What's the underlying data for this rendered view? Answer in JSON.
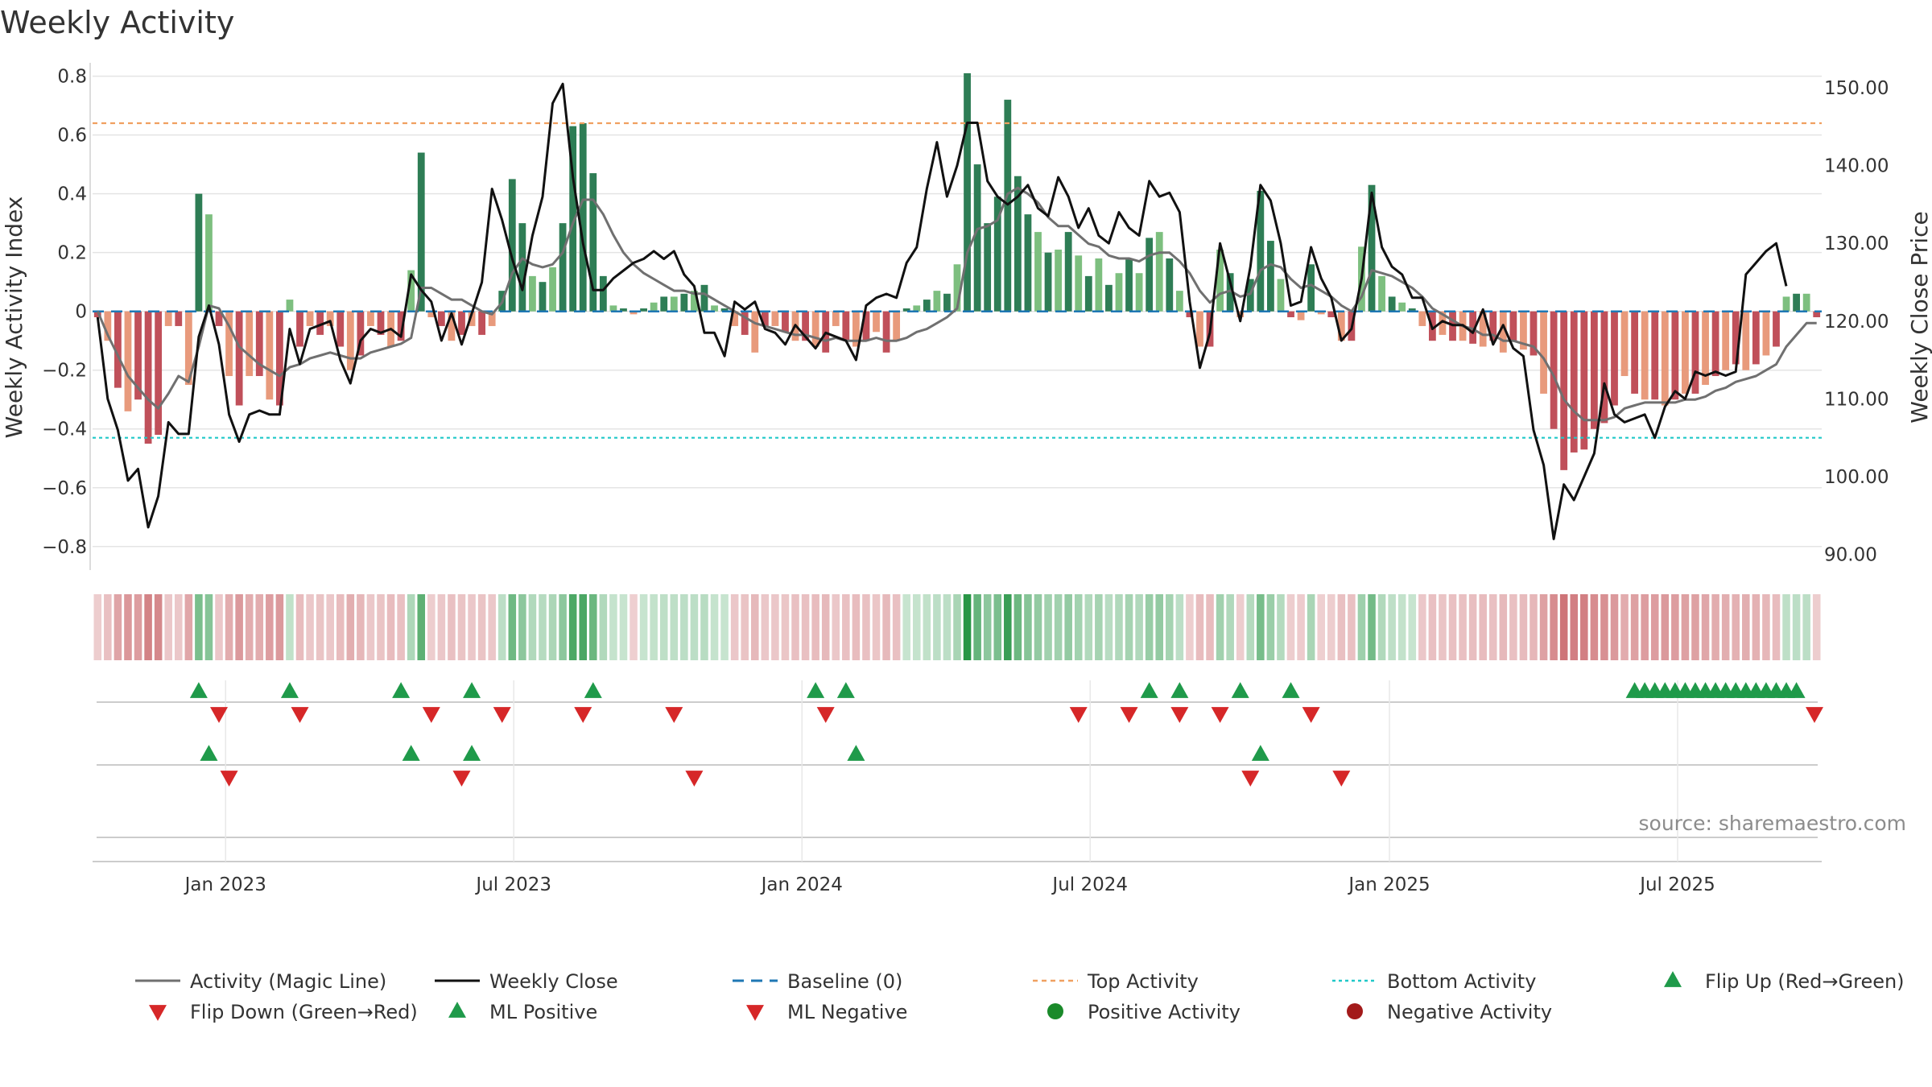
{
  "chart_data": {
    "type": "bar",
    "title": "Weekly Activity",
    "ylabel_left": "Weekly Activity Index",
    "ylabel_right": "Weekly Close Price",
    "ylim_left": [
      -0.88,
      0.84
    ],
    "ylim_right": [
      88.0,
      153.0
    ],
    "yticks_left": [
      0.8,
      0.6,
      0.4,
      0.2,
      0,
      -0.2,
      -0.4,
      -0.6,
      -0.8
    ],
    "ytick_labels_left": [
      "0.8",
      "0.6",
      "0.4",
      "0.2",
      "0",
      "−0.2",
      "−0.4",
      "−0.6",
      "−0.8"
    ],
    "yticks_right": [
      150,
      140,
      130,
      120,
      110,
      100,
      90
    ],
    "ytick_labels_right": [
      "150.00",
      "140.00",
      "130.00",
      "120.00",
      "110.00",
      "100.00",
      "90.00"
    ],
    "top_activity": 0.64,
    "bottom_activity": -0.43,
    "baseline": 0,
    "x_start": "2022-10-10",
    "x_end": "2025-10-06",
    "x_ticks": [
      {
        "date": "2023-01-02",
        "label": "Jan 2023"
      },
      {
        "date": "2023-07-03",
        "label": "Jul 2023"
      },
      {
        "date": "2024-01-01",
        "label": "Jan 2024"
      },
      {
        "date": "2024-07-01",
        "label": "Jul 2024"
      },
      {
        "date": "2025-01-06",
        "label": "Jan 2025"
      },
      {
        "date": "2025-07-07",
        "label": "Jul 2025"
      }
    ],
    "activity": [
      -0.02,
      -0.1,
      -0.26,
      -0.34,
      -0.3,
      -0.45,
      -0.42,
      -0.05,
      -0.05,
      -0.25,
      0.4,
      0.33,
      -0.05,
      -0.22,
      -0.32,
      -0.22,
      -0.22,
      -0.3,
      -0.32,
      0.04,
      -0.12,
      -0.05,
      -0.08,
      -0.05,
      -0.12,
      -0.2,
      -0.15,
      -0.05,
      -0.08,
      -0.12,
      -0.1,
      0.14,
      0.54,
      -0.02,
      -0.05,
      -0.1,
      -0.08,
      -0.05,
      -0.08,
      -0.05,
      0.07,
      0.45,
      0.3,
      0.12,
      0.1,
      0.15,
      0.3,
      0.63,
      0.64,
      0.47,
      0.12,
      0.02,
      0.01,
      -0.01,
      0.01,
      0.03,
      0.05,
      0.05,
      0.06,
      0.07,
      0.09,
      0.02,
      0.01,
      -0.05,
      -0.08,
      -0.14,
      -0.05,
      -0.05,
      -0.07,
      -0.1,
      -0.1,
      -0.12,
      -0.14,
      -0.05,
      -0.1,
      -0.12,
      -0.1,
      -0.07,
      -0.14,
      -0.1,
      0.01,
      0.02,
      0.04,
      0.07,
      0.06,
      0.16,
      0.81,
      0.5,
      0.3,
      0.39,
      0.72,
      0.46,
      0.33,
      0.27,
      0.2,
      0.21,
      0.27,
      0.19,
      0.12,
      0.18,
      0.09,
      0.13,
      0.18,
      0.13,
      0.25,
      0.27,
      0.18,
      0.07,
      -0.02,
      -0.12,
      -0.12,
      0.21,
      0.13,
      -0.02,
      0.11,
      0.41,
      0.24,
      0.11,
      -0.02,
      -0.03,
      0.16,
      -0.01,
      -0.02,
      -0.1,
      -0.1,
      0.22,
      0.43,
      0.12,
      0.05,
      0.03,
      0.01,
      -0.05,
      -0.1,
      -0.08,
      -0.1,
      -0.1,
      -0.11,
      -0.12,
      -0.1,
      -0.14,
      -0.1,
      -0.13,
      -0.15,
      -0.28,
      -0.4,
      -0.54,
      -0.48,
      -0.47,
      -0.4,
      -0.38,
      -0.32,
      -0.22,
      -0.28,
      -0.3,
      -0.3,
      -0.32,
      -0.3,
      -0.28,
      -0.28,
      -0.25,
      -0.22,
      -0.2,
      -0.18,
      -0.2,
      -0.18,
      -0.15,
      -0.12,
      0.05,
      0.06,
      0.06,
      -0.02
    ],
    "magic_line": [
      0.0,
      -0.08,
      -0.15,
      -0.22,
      -0.26,
      -0.3,
      -0.33,
      -0.28,
      -0.22,
      -0.24,
      -0.12,
      0.02,
      0.01,
      -0.05,
      -0.12,
      -0.15,
      -0.18,
      -0.2,
      -0.22,
      -0.19,
      -0.18,
      -0.16,
      -0.15,
      -0.14,
      -0.15,
      -0.16,
      -0.16,
      -0.14,
      -0.13,
      -0.12,
      -0.11,
      -0.09,
      0.08,
      0.08,
      0.06,
      0.04,
      0.04,
      0.02,
      0.0,
      -0.01,
      0.03,
      0.13,
      0.18,
      0.16,
      0.15,
      0.16,
      0.2,
      0.3,
      0.38,
      0.38,
      0.33,
      0.26,
      0.2,
      0.16,
      0.13,
      0.11,
      0.09,
      0.07,
      0.07,
      0.06,
      0.06,
      0.04,
      0.02,
      0.0,
      -0.02,
      -0.04,
      -0.05,
      -0.06,
      -0.07,
      -0.08,
      -0.08,
      -0.09,
      -0.1,
      -0.09,
      -0.1,
      -0.1,
      -0.1,
      -0.09,
      -0.1,
      -0.1,
      -0.09,
      -0.07,
      -0.06,
      -0.04,
      -0.02,
      0.01,
      0.2,
      0.28,
      0.29,
      0.31,
      0.4,
      0.42,
      0.4,
      0.37,
      0.32,
      0.29,
      0.29,
      0.26,
      0.23,
      0.22,
      0.19,
      0.18,
      0.18,
      0.17,
      0.19,
      0.2,
      0.2,
      0.17,
      0.13,
      0.07,
      0.03,
      0.06,
      0.07,
      0.05,
      0.06,
      0.14,
      0.16,
      0.15,
      0.11,
      0.08,
      0.09,
      0.07,
      0.05,
      0.02,
      0.0,
      0.05,
      0.14,
      0.13,
      0.12,
      0.1,
      0.08,
      0.05,
      0.01,
      -0.01,
      -0.03,
      -0.05,
      -0.06,
      -0.08,
      -0.08,
      -0.1,
      -0.1,
      -0.11,
      -0.12,
      -0.16,
      -0.22,
      -0.3,
      -0.34,
      -0.37,
      -0.37,
      -0.37,
      -0.36,
      -0.33,
      -0.32,
      -0.31,
      -0.31,
      -0.31,
      -0.31,
      -0.3,
      -0.3,
      -0.29,
      -0.27,
      -0.26,
      -0.24,
      -0.23,
      -0.22,
      -0.2,
      -0.18,
      -0.12,
      -0.08,
      -0.04,
      -0.04
    ],
    "weekly_close": [
      120.5,
      110.0,
      106.0,
      99.5,
      101.0,
      93.5,
      97.5,
      107.0,
      105.5,
      105.5,
      118.0,
      122.0,
      117.0,
      108.0,
      104.5,
      108.0,
      108.5,
      108.0,
      108.0,
      119.0,
      114.5,
      119.0,
      119.5,
      120.0,
      115.0,
      112.0,
      117.5,
      119.0,
      118.5,
      119.0,
      118.0,
      126.0,
      124.0,
      122.5,
      117.5,
      121.0,
      117.0,
      121.0,
      125.0,
      137.0,
      133.0,
      128.0,
      124.0,
      131.0,
      136.0,
      148.0,
      150.5,
      138.5,
      130.0,
      124.0,
      124.0,
      125.5,
      126.5,
      127.5,
      128.0,
      129.0,
      128.0,
      129.0,
      126.0,
      124.5,
      118.5,
      118.5,
      115.5,
      122.5,
      121.5,
      122.5,
      119.0,
      118.5,
      117.0,
      119.5,
      118.0,
      116.5,
      118.5,
      118.0,
      117.5,
      115.0,
      122.0,
      123.0,
      123.5,
      123.0,
      127.5,
      129.5,
      137.0,
      143.0,
      136.0,
      140.0,
      145.5,
      145.5,
      138.0,
      136.0,
      135.0,
      136.0,
      137.5,
      134.5,
      133.5,
      138.5,
      136.0,
      132.0,
      134.5,
      131.0,
      130.0,
      134.0,
      132.0,
      131.0,
      138.0,
      136.0,
      136.5,
      134.0,
      122.5,
      114.0,
      118.5,
      130.0,
      125.0,
      120.0,
      127.0,
      137.5,
      135.5,
      130.0,
      122.0,
      122.5,
      129.5,
      125.5,
      123.0,
      117.5,
      119.0,
      125.5,
      136.5,
      129.5,
      127.0,
      126.0,
      123.0,
      123.0,
      119.0,
      120.0,
      119.5,
      119.5,
      118.5,
      121.5,
      117.0,
      119.5,
      116.5,
      115.5,
      106.0,
      101.5,
      92.0,
      99.0,
      97.0,
      100.0,
      103.0,
      112.0,
      108.0,
      107.0,
      107.5,
      108.0,
      105.0,
      109.0,
      111.0,
      110.0,
      113.5,
      113.0,
      113.5,
      113.0,
      113.5,
      126.0,
      127.5,
      129.0,
      130.0,
      124.5
    ],
    "bar_colors": {
      "positive_strong": "#2e7d55",
      "positive_light": "#7dbf7f",
      "negative_strong": "#c0505a",
      "negative_light": "#e89a7c"
    },
    "line_colors": {
      "magic_line": "#707070",
      "weekly_close": "#111111",
      "baseline": "#1f77b4",
      "top_activity": "#f0a060",
      "bottom_activity": "#20c8c8",
      "flip_up": "#1f9a4a",
      "flip_down": "#d62728",
      "positive_activity": "#1a8a2a",
      "negative_activity": "#a31a1a",
      "grid": "#e4e4e4"
    },
    "flip_up_weeks": [
      10,
      19,
      30,
      37,
      49,
      71,
      74,
      104,
      107,
      113,
      118,
      152,
      153,
      154,
      155,
      156,
      157,
      158,
      159,
      160,
      161,
      162,
      163,
      164,
      165,
      166,
      167,
      168
    ],
    "flip_down_weeks": [
      12,
      20,
      33,
      40,
      48,
      57,
      72,
      97,
      102,
      107,
      111,
      120,
      170
    ],
    "ml_positive_weeks": [
      11,
      31,
      37,
      75,
      115
    ],
    "ml_negative_weeks": [
      13,
      36,
      59,
      114,
      123
    ],
    "legend": [
      {
        "key": "magic_line",
        "label": "Activity (Magic Line)"
      },
      {
        "key": "weekly_close",
        "label": "Weekly Close"
      },
      {
        "key": "baseline",
        "label": "Baseline (0)"
      },
      {
        "key": "top_activity",
        "label": "Top Activity"
      },
      {
        "key": "bottom_activity",
        "label": "Bottom Activity"
      },
      {
        "key": "flip_up",
        "label": "Flip Up (Red→Green)"
      },
      {
        "key": "flip_down",
        "label": "Flip Down (Green→Red)"
      },
      {
        "key": "ml_positive",
        "label": "ML Positive"
      },
      {
        "key": "ml_negative",
        "label": "ML Negative"
      },
      {
        "key": "positive_activity",
        "label": "Positive Activity"
      },
      {
        "key": "negative_activity",
        "label": "Negative Activity"
      }
    ]
  },
  "source": "source: sharemaestro.com"
}
